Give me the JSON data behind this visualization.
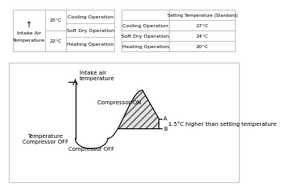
{
  "bg_color": "#ffffff",
  "table1": {
    "arrow": "↑",
    "left_label_line1": "Intake Air",
    "left_label_line2": "Temperature",
    "temp1": "25°C",
    "temp2": "22°C",
    "operations": [
      "Cooling Operation",
      "Soft Dry Operation",
      "Heating Operation"
    ]
  },
  "table2": {
    "header_col1": "",
    "header_col2": "Setting Temperature (Standard)",
    "rows": [
      [
        "Cooling Operation",
        "27°C"
      ],
      [
        "Soft Dry Operation",
        "24°C"
      ],
      [
        "Heating Operation",
        "20°C"
      ]
    ]
  },
  "diagram": {
    "intake_air_temp_label": "Intake air\ntemperature",
    "compressor_on_label": "Compressor ON",
    "compressor_off_label": "Compressor OFF",
    "temp_compressor_off_label": "Temperature\nCompressor OFF",
    "point_a_label": "A",
    "point_b_label": "B",
    "annotation": "1.5°C higher than setting temperature"
  }
}
